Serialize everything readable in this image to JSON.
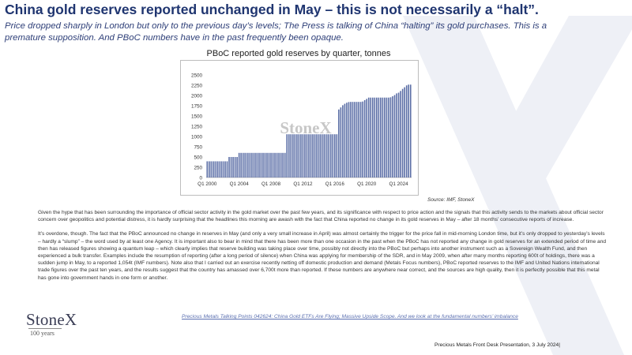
{
  "header": {
    "title": "China gold reserves reported unchanged in May – this is not necessarily a “halt”.",
    "subtitle": "Price dropped sharply in London but only to the previous day’s levels; The Press is talking of China “halting” its gold purchases.  This is a premature supposition. And PBoC numbers have in the past frequently been opaque."
  },
  "chart_data": {
    "type": "bar",
    "title": "PBoC reported gold reserves  by quarter, tonnes",
    "xlabel": "",
    "ylabel": "",
    "ylim": [
      0,
      2500
    ],
    "yticks": [
      0,
      250,
      500,
      750,
      1000,
      1250,
      1500,
      1750,
      2000,
      2250,
      2500
    ],
    "x_tick_labels": [
      "Q1 2000",
      "Q1 2004",
      "Q1 2008",
      "Q1 2012",
      "Q1 2016",
      "Q1 2020",
      "Q1 2024"
    ],
    "x_tick_positions": [
      0,
      16,
      32,
      48,
      64,
      80,
      96
    ],
    "watermark": "StoneX",
    "source": "Source: IMF, StoneX",
    "grid": false,
    "legend": "none",
    "bar_color": "#5b6ea6",
    "values": [
      395,
      395,
      395,
      395,
      395,
      395,
      395,
      395,
      395,
      395,
      395,
      500,
      500,
      500,
      500,
      500,
      600,
      600,
      600,
      600,
      600,
      600,
      600,
      600,
      600,
      600,
      600,
      600,
      600,
      600,
      600,
      600,
      600,
      600,
      600,
      600,
      600,
      600,
      600,
      600,
      1054,
      1054,
      1054,
      1054,
      1054,
      1054,
      1054,
      1054,
      1054,
      1054,
      1054,
      1054,
      1054,
      1054,
      1054,
      1054,
      1054,
      1054,
      1054,
      1054,
      1054,
      1054,
      1054,
      1054,
      1054,
      1054,
      1658,
      1708,
      1762,
      1797,
      1823,
      1839,
      1843,
      1843,
      1843,
      1843,
      1843,
      1843,
      1852,
      1885,
      1916,
      1948,
      1948,
      1948,
      1948,
      1948,
      1948,
      1948,
      1948,
      1948,
      1948,
      1948,
      1955,
      1980,
      2010,
      2050,
      2068,
      2110,
      2160,
      2200,
      2245,
      2264,
      2264
    ]
  },
  "body": {
    "paragraph1": "Given the hype that has been surrounding  the importance of official sector activity in the gold market over the past few years, and its significance with respect to price action and the signals that this activity sends to the markets about official sector concern over geopolitics and potential distress, it is hardly surprising that the headlines this morning are awash with the fact that China reported no change in its gold reserves in May – after 18 months’ consecutive reports of increase.",
    "paragraph2": "It’s overdone,  though.  The fact that the PBoC announced  no change in reserves in May (and only a very small increase in April) was almost certainly the trigger for the price fall in mid-morning  London time, but it’s only dropped to yesterday’s levels – hardly a “slump” – the word used by at least one Agency.   It is important  also to bear in mind that there has been more than one occasion in the past when the PBoC has not reported any change in gold reserves for an extended period of time and then has released figures showing a quantum leap – which clearly implies that reserve building was taking place over time, possibly not directly into the PBoC but perhaps into another instrument such as a Sovereign Wealth Fund,  and then experienced a bulk transfer.  Examples include the resumption of reporting (after a long period of silence) when China was applying for membership  of the SDR, and in May 2009,  when after many months reporting 600t of holdings,  there was a sudden jump in May, to a reported 1,054t (IMF numbers).   Note also that I carried out an exercise recently netting off domestic production  and demand (Metals Focus numbers), PBoC reported reserves to the IMF and United Nations international  trade figures over the past ten years, and the results suggest that the country has amassed over 6,700t more than reported.  If these numbers are anywhere near correct, and the sources are high quality, then it is perfectly possible that this metal has gone into government hands in one form or another.",
    "link_text": "Precious Metals Talking Points 042624: China Gold ETFs Are Flying; Massive Upside Scope.  And we look at the fundamental numbers’ imbalance"
  },
  "footer": {
    "text": "Precious Metals Front Desk Presentation, 3 July 2024|"
  },
  "brand": {
    "logo": "StoneX",
    "logo_sub": "100 years"
  },
  "colors": {
    "title": "#1f3570",
    "subtitle": "#2e3f78",
    "bars": "#5b6ea6",
    "watermark": "#eef0f6"
  }
}
